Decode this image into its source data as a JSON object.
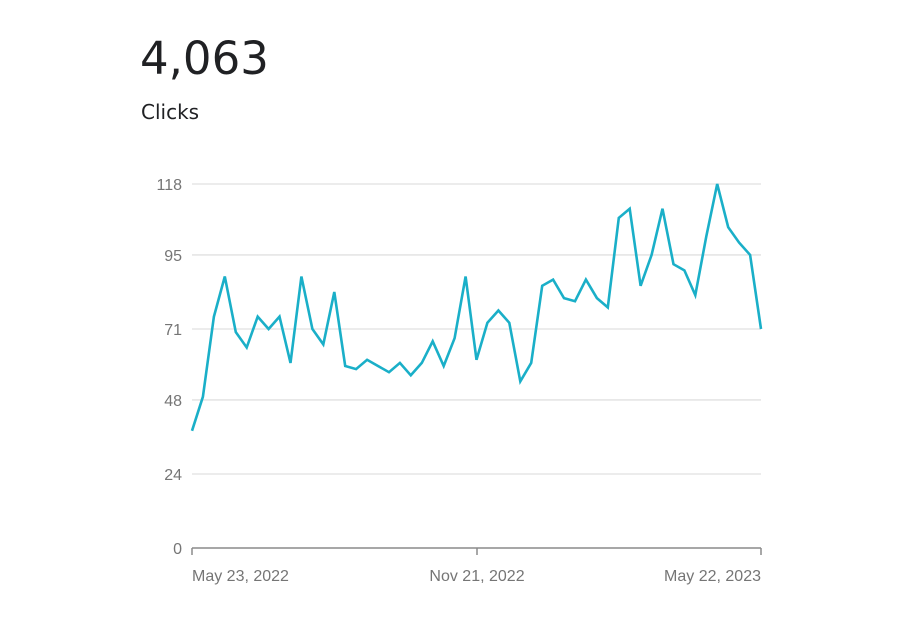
{
  "metric": {
    "value": "4,063",
    "label": "Clicks"
  },
  "colors": {
    "line": "#1aafc8",
    "gridline": "#e0e0e0",
    "axis": "#8a8a8a",
    "tick_text": "#757575",
    "title_text": "#202124"
  },
  "chart_data": {
    "type": "line",
    "title": "Clicks",
    "subtitle": "4,063",
    "xlabel": "",
    "ylabel": "",
    "ylim": [
      0,
      118
    ],
    "yticks": [
      0,
      24,
      48,
      71,
      95,
      118
    ],
    "xtick_labels": [
      "May 23, 2022",
      "Nov 21, 2022",
      "May 22, 2023"
    ],
    "grid": true,
    "legend": "none",
    "series": [
      {
        "name": "Clicks",
        "x_start": "May 23, 2022",
        "x_end": "May 22, 2023",
        "interval": "weekly",
        "values": [
          38,
          49,
          75,
          88,
          70,
          65,
          75,
          71,
          75,
          60,
          88,
          71,
          66,
          83,
          59,
          58,
          61,
          59,
          57,
          60,
          56,
          60,
          67,
          59,
          68,
          88,
          61,
          73,
          77,
          73,
          54,
          60,
          85,
          87,
          81,
          80,
          87,
          81,
          78,
          107,
          110,
          85,
          95,
          110,
          92,
          90,
          82,
          101,
          118,
          104,
          99,
          95,
          71
        ]
      }
    ]
  }
}
